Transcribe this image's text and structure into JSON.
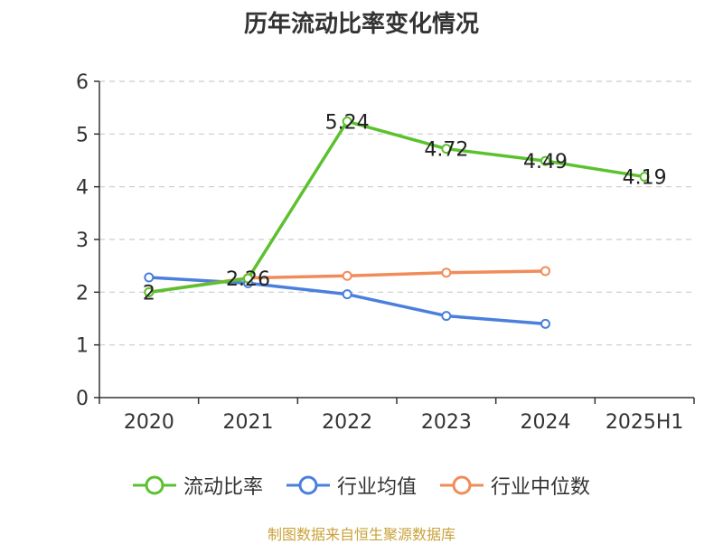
{
  "title": "历年流动比率变化情况",
  "source": "制图数据来自恒生聚源数据库",
  "colors": {
    "current_ratio": "#5cc12f",
    "industry_avg": "#4a7fdc",
    "industry_median": "#f08c5a",
    "grid": "#cccccc",
    "axis": "#333333"
  },
  "chart_data": {
    "type": "line",
    "title": "历年流动比率变化情况",
    "categories": [
      "2020",
      "2021",
      "2022",
      "2023",
      "2024",
      "2025H1"
    ],
    "ylim": [
      0,
      6
    ],
    "yticks": [
      0,
      1,
      2,
      3,
      4,
      5,
      6
    ],
    "grid": true,
    "legend_position": "bottom",
    "series": [
      {
        "name": "流动比率",
        "values": [
          2,
          2.26,
          5.24,
          4.72,
          4.49,
          4.19
        ],
        "labels": [
          "2",
          "2.26",
          "5.24",
          "4.72",
          "4.49",
          "4.19"
        ]
      },
      {
        "name": "行业均值",
        "values": [
          2.28,
          2.17,
          1.96,
          1.55,
          1.4,
          null
        ]
      },
      {
        "name": "行业中位数",
        "values": [
          2.0,
          2.27,
          2.31,
          2.37,
          2.4,
          null
        ]
      }
    ]
  }
}
